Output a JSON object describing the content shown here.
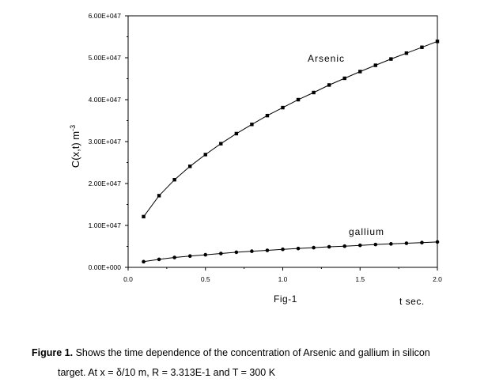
{
  "chart_data": {
    "type": "line",
    "title": "",
    "xlabel": "t sec.",
    "ylabel": "C(x,t) m",
    "ylabel_superscript": "-3",
    "figure_label": "Fig-1",
    "xlim": [
      0.0,
      2.0
    ],
    "ylim": [
      0,
      6e+47
    ],
    "x_ticks": [
      0.0,
      0.5,
      1.0,
      1.5,
      2.0
    ],
    "x_tick_labels": [
      "0.0",
      "0.5",
      "1.0",
      "1.5",
      "2.0"
    ],
    "y_ticks": [
      0,
      1e+47,
      2e+47,
      3e+47,
      4e+47,
      5e+47,
      6e+47
    ],
    "y_tick_labels": [
      "0.00E+000",
      "1.00E+047",
      "2.00E+047",
      "3.00E+047",
      "4.00E+047",
      "5.00E+047",
      "6.00E+047"
    ],
    "grid": false,
    "series": [
      {
        "name": "Arsenic",
        "marker": "square",
        "x": [
          0.1,
          0.2,
          0.3,
          0.4,
          0.5,
          0.6,
          0.7,
          0.8,
          0.9,
          1.0,
          1.1,
          1.2,
          1.3,
          1.4,
          1.5,
          1.6,
          1.7,
          1.8,
          1.9,
          2.0
        ],
        "y": [
          1.21e+47,
          1.71e+47,
          2.09e+47,
          2.41e+47,
          2.69e+47,
          2.95e+47,
          3.19e+47,
          3.41e+47,
          3.62e+47,
          3.81e+47,
          4e+47,
          4.17e+47,
          4.35e+47,
          4.51e+47,
          4.67e+47,
          4.82e+47,
          4.97e+47,
          5.11e+47,
          5.25e+47,
          5.39e+47
        ]
      },
      {
        "name": "gallium",
        "marker": "circle",
        "x": [
          0.1,
          0.2,
          0.3,
          0.4,
          0.5,
          0.6,
          0.7,
          0.8,
          0.9,
          1.0,
          1.1,
          1.2,
          1.3,
          1.4,
          1.5,
          1.6,
          1.7,
          1.8,
          1.9,
          2.0
        ],
        "y": [
          1.35e+46,
          1.9e+46,
          2.35e+46,
          2.7e+46,
          3e+46,
          3.3e+46,
          3.6e+46,
          3.85e+46,
          4.05e+46,
          4.3e+46,
          4.5e+46,
          4.7e+46,
          4.9e+46,
          5.05e+46,
          5.25e+46,
          5.45e+46,
          5.6e+46,
          5.75e+46,
          5.9e+46,
          6.05e+46
        ]
      }
    ]
  },
  "caption": {
    "label": "Figure 1.",
    "line1": " Shows the time dependence of the concentration of Arsenic and gallium in silicon",
    "line2": "target. At x = δ/10 m, R = 3.313E-1 and T = 300  K"
  }
}
